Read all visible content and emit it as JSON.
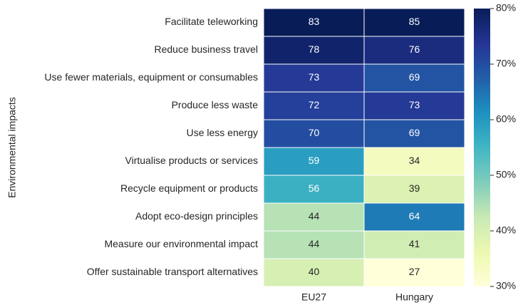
{
  "chart_data": {
    "type": "heatmap",
    "y_label": "Environmental impacts",
    "categories": [
      "Facilitate teleworking",
      "Reduce business travel",
      "Use fewer materials, equipment or consumables",
      "Produce less waste",
      "Use less energy",
      "Virtualise products or services",
      "Recycle equipment or products",
      "Adopt eco-design principles",
      "Measure our environmental impact",
      "Offer sustainable transport alternatives"
    ],
    "series": [
      {
        "name": "EU27",
        "values": [
          83,
          78,
          73,
          72,
          70,
          59,
          56,
          44,
          44,
          40
        ]
      },
      {
        "name": "Hungary",
        "values": [
          85,
          76,
          69,
          73,
          69,
          34,
          39,
          64,
          41,
          27
        ]
      }
    ],
    "colormap": "YlGnBu",
    "clim": [
      30,
      80
    ],
    "cticks": [
      {
        "value": 30,
        "label": "30%"
      },
      {
        "value": 40,
        "label": "40%"
      },
      {
        "value": 50,
        "label": "50%"
      },
      {
        "value": 60,
        "label": "60%"
      },
      {
        "value": 70,
        "label": "70%"
      },
      {
        "value": 80,
        "label": "80%"
      }
    ]
  }
}
